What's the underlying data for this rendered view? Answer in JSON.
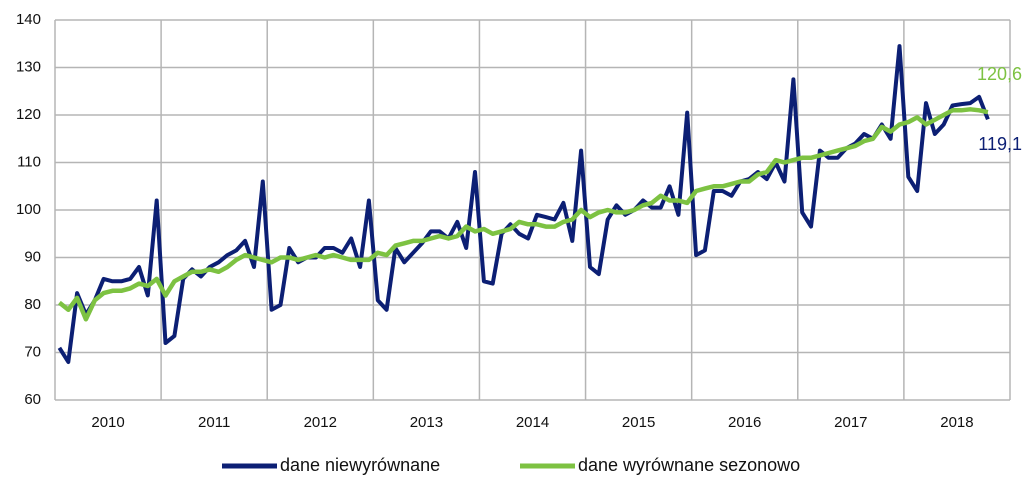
{
  "chart_data": {
    "type": "line",
    "year_labels": [
      "2010",
      "2011",
      "2012",
      "2013",
      "2014",
      "2015",
      "2016",
      "2017",
      "2018"
    ],
    "ylim": [
      60,
      140
    ],
    "yticks": [
      60,
      70,
      80,
      90,
      100,
      110,
      120,
      130,
      140
    ],
    "grid": true,
    "legend": "bottom",
    "series": [
      {
        "name": "dane niewyrównane",
        "color": "#0c1f74",
        "values": [
          71,
          68,
          82.5,
          78,
          81,
          85.5,
          85,
          85,
          85.5,
          88,
          82,
          102,
          72,
          73.5,
          85.5,
          87.5,
          86,
          88,
          89,
          90.5,
          91.5,
          93.5,
          88,
          106,
          79,
          80,
          92,
          89,
          90,
          90,
          92,
          92,
          91,
          94,
          88,
          102,
          81,
          79,
          92,
          89,
          91,
          93,
          95.5,
          95.5,
          94,
          97.5,
          92,
          108,
          85,
          84.5,
          95,
          97,
          95,
          94,
          99,
          98.5,
          98,
          101.5,
          93.5,
          112.5,
          88,
          86.5,
          98,
          101,
          99,
          100,
          102,
          100.5,
          100.5,
          105,
          99,
          120.5,
          90.5,
          91.5,
          104,
          104,
          103,
          106,
          106.5,
          108,
          106.5,
          110,
          106,
          127.5,
          99.5,
          96.5,
          112.5,
          111,
          111,
          113,
          114,
          116,
          115,
          118,
          115,
          134.5,
          107,
          104,
          122.5,
          116,
          118,
          122,
          122.3,
          122.5,
          123.8,
          119.1
        ],
        "value_labels": [
          null,
          null,
          null,
          null,
          null,
          null,
          null,
          null,
          null,
          null,
          null,
          null,
          null,
          null,
          null,
          null,
          null,
          null,
          null,
          null,
          null,
          null,
          null,
          null,
          null,
          null,
          null,
          null,
          null,
          null,
          null,
          null,
          null,
          null,
          null,
          null,
          null,
          null,
          null,
          null,
          null,
          null,
          null,
          null,
          null,
          null,
          null,
          null,
          null,
          null,
          null,
          null,
          null,
          null,
          null,
          null,
          null,
          null,
          null,
          null,
          null,
          null,
          null,
          null,
          null,
          null,
          null,
          null,
          null,
          null,
          null,
          null,
          null,
          null,
          null,
          null,
          null,
          null,
          null,
          null,
          null,
          null,
          null,
          null,
          null,
          null,
          null,
          null,
          null,
          null,
          null,
          null,
          null,
          null,
          null,
          null,
          null,
          null,
          null,
          null,
          null,
          null,
          null,
          null,
          null,
          "119,1"
        ]
      },
      {
        "name": "dane wyrównane sezonowo",
        "color": "#7dc242",
        "values": [
          80.5,
          79,
          81.5,
          77,
          81,
          82.5,
          83,
          83,
          83.5,
          84.5,
          84,
          85.5,
          82,
          85,
          86,
          87,
          87,
          87.5,
          87,
          88,
          89.5,
          90.5,
          90,
          89.5,
          89,
          90,
          90,
          89.5,
          90,
          90.5,
          90,
          90.5,
          90,
          89.5,
          89.5,
          89.5,
          91,
          90.5,
          92.5,
          93,
          93.5,
          93.5,
          94,
          94.5,
          94,
          94.5,
          96.5,
          95.5,
          96,
          95,
          95.5,
          96,
          97.5,
          97,
          97,
          96.5,
          96.5,
          97.5,
          98,
          100,
          98.5,
          99.5,
          100,
          99.5,
          99.5,
          100,
          101,
          101.5,
          103,
          102,
          102,
          101.5,
          104,
          104.5,
          105,
          105,
          105.5,
          106,
          106,
          107.5,
          108,
          110.5,
          110,
          110.5,
          111,
          111,
          111.5,
          112,
          112.5,
          113,
          113.5,
          114.5,
          115,
          117.5,
          116.5,
          118,
          118.5,
          119.5,
          118,
          119,
          120,
          121,
          121,
          121.2,
          121,
          120.6
        ],
        "value_labels": [
          null,
          null,
          null,
          null,
          null,
          null,
          null,
          null,
          null,
          null,
          null,
          null,
          null,
          null,
          null,
          null,
          null,
          null,
          null,
          null,
          null,
          null,
          null,
          null,
          null,
          null,
          null,
          null,
          null,
          null,
          null,
          null,
          null,
          null,
          null,
          null,
          null,
          null,
          null,
          null,
          null,
          null,
          null,
          null,
          null,
          null,
          null,
          null,
          null,
          null,
          null,
          null,
          null,
          null,
          null,
          null,
          null,
          null,
          null,
          null,
          null,
          null,
          null,
          null,
          null,
          null,
          null,
          null,
          null,
          null,
          null,
          null,
          null,
          null,
          null,
          null,
          null,
          null,
          null,
          null,
          null,
          null,
          null,
          null,
          null,
          null,
          null,
          null,
          null,
          null,
          null,
          null,
          null,
          null,
          null,
          null,
          null,
          null,
          null,
          null,
          null,
          null,
          null,
          null,
          null,
          "120,6"
        ]
      }
    ]
  }
}
